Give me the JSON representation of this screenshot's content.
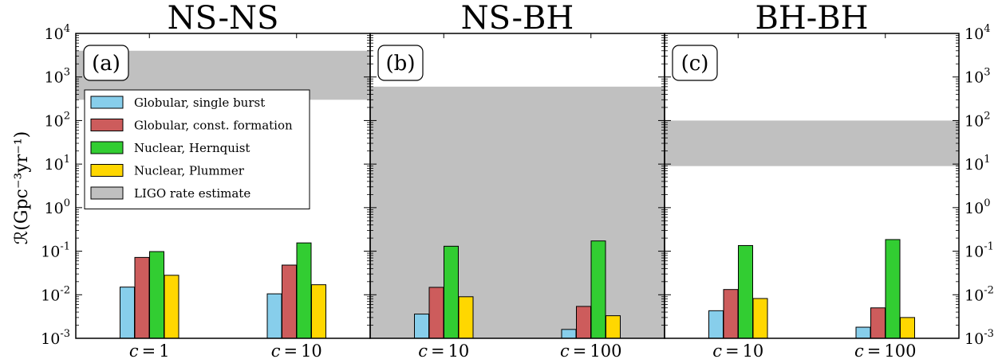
{
  "figure": {
    "ylabel": "ℛ(Gpc⁻³yr⁻¹)",
    "yscale": "log",
    "ylim": [
      0.001,
      10000
    ],
    "ytick_labels": [
      {
        "base": "10",
        "exp": "-3"
      },
      {
        "base": "10",
        "exp": "-2"
      },
      {
        "base": "10",
        "exp": "-1"
      },
      {
        "base": "10",
        "exp": "0"
      },
      {
        "base": "10",
        "exp": "1"
      },
      {
        "base": "10",
        "exp": "2"
      },
      {
        "base": "10",
        "exp": "3"
      },
      {
        "base": "10",
        "exp": "4"
      }
    ]
  },
  "legend": {
    "placement": "upper-left of panel (a)",
    "entries": [
      {
        "label": "Globular, single burst",
        "color": "#87ceeb"
      },
      {
        "label": "Globular, const. formation",
        "color": "#cd5c5c"
      },
      {
        "label": "Nuclear, Hernquist",
        "color": "#32cd32"
      },
      {
        "label": "Nuclear, Plummer",
        "color": "#ffd700"
      },
      {
        "label": "LIGO rate estimate",
        "color": "#c0c0c0"
      }
    ]
  },
  "chart_data": [
    {
      "type": "bar",
      "title": "NS-NS",
      "panel_label": "(a)",
      "yscale": "log",
      "ylim": [
        0.001,
        10000
      ],
      "categories": [
        {
          "var": "c",
          "eq": "=",
          "val": "1"
        },
        {
          "var": "c",
          "eq": "=",
          "val": "10"
        }
      ],
      "series": [
        {
          "name": "Globular, single burst",
          "values": [
            0.015,
            0.0105
          ]
        },
        {
          "name": "Globular, const. formation",
          "values": [
            0.072,
            0.048
          ]
        },
        {
          "name": "Nuclear, Hernquist",
          "values": [
            0.098,
            0.155
          ]
        },
        {
          "name": "Nuclear, Plummer",
          "values": [
            0.028,
            0.017
          ]
        }
      ],
      "ligo_band": [
        300,
        4000
      ]
    },
    {
      "type": "bar",
      "title": "NS-BH",
      "panel_label": "(b)",
      "yscale": "log",
      "ylim": [
        0.001,
        10000
      ],
      "categories": [
        {
          "var": "c",
          "eq": "=",
          "val": "10"
        },
        {
          "var": "c",
          "eq": "=",
          "val": "100"
        }
      ],
      "series": [
        {
          "name": "Globular, single burst",
          "values": [
            0.0036,
            0.0016
          ]
        },
        {
          "name": "Globular, const. formation",
          "values": [
            0.0148,
            0.0054
          ]
        },
        {
          "name": "Nuclear, Hernquist",
          "values": [
            0.13,
            0.172
          ]
        },
        {
          "name": "Nuclear, Plummer",
          "values": [
            0.009,
            0.0033
          ]
        }
      ],
      "ligo_band": [
        0.001,
        600
      ]
    },
    {
      "type": "bar",
      "title": "BH-BH",
      "panel_label": "(c)",
      "yscale": "log",
      "ylim": [
        0.001,
        10000
      ],
      "categories": [
        {
          "var": "c",
          "eq": "=",
          "val": "10"
        },
        {
          "var": "c",
          "eq": "=",
          "val": "100"
        }
      ],
      "series": [
        {
          "name": "Globular, single burst",
          "values": [
            0.0043,
            0.0018
          ]
        },
        {
          "name": "Globular, const. formation",
          "values": [
            0.0132,
            0.005
          ]
        },
        {
          "name": "Nuclear, Hernquist",
          "values": [
            0.135,
            0.185
          ]
        },
        {
          "name": "Nuclear, Plummer",
          "values": [
            0.0082,
            0.003
          ]
        }
      ],
      "ligo_band": [
        9,
        100
      ]
    }
  ]
}
